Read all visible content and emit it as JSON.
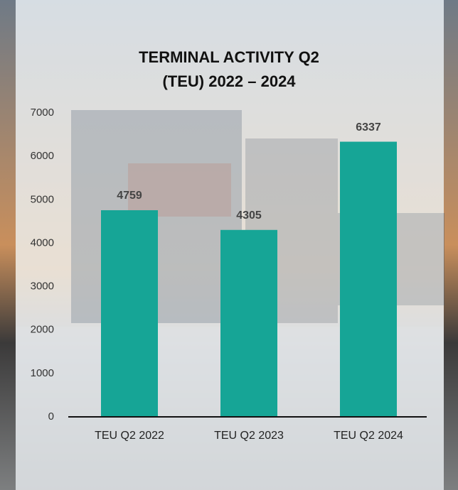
{
  "chart_data": {
    "type": "bar",
    "title": [
      "TERMINAL ACTIVITY Q2",
      "(TEU) 2022 – 2024"
    ],
    "categories": [
      "TEU Q2 2022",
      "TEU Q2 2023",
      "TEU Q2 2024"
    ],
    "values": [
      4759,
      4305,
      6337
    ],
    "color": "#16a596",
    "data_labels": true,
    "ylim": [
      0,
      7000
    ],
    "yticks": [
      0,
      1000,
      2000,
      3000,
      4000,
      5000,
      6000,
      7000
    ],
    "grid": false
  }
}
